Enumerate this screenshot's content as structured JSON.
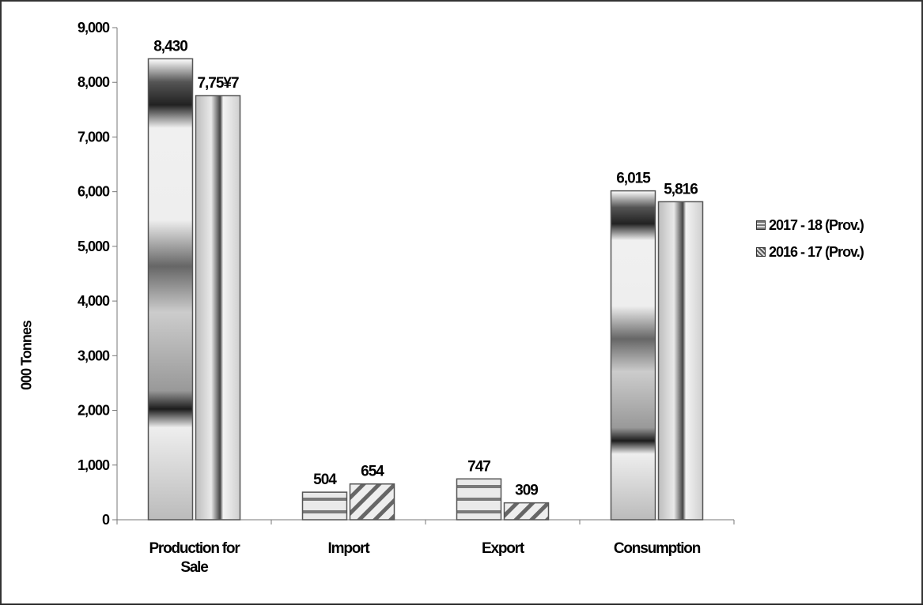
{
  "chart_data": {
    "type": "bar",
    "title": "",
    "xlabel": "",
    "ylabel": "000 Tonnes",
    "ylim": [
      0,
      9000
    ],
    "yticks": [
      "0",
      "1,000",
      "2,000",
      "3,000",
      "4,000",
      "5,000",
      "6,000",
      "7,000",
      "8,000",
      "9,000"
    ],
    "categories": [
      [
        "Production for",
        "Sale"
      ],
      [
        "Import"
      ],
      [
        "Export"
      ],
      [
        "Consumption"
      ]
    ],
    "series": [
      {
        "name": "2017 - 18 (Prov.)",
        "values": [
          8430,
          504,
          747,
          6015
        ],
        "labels": [
          "8,430",
          "504",
          "747",
          "6,015"
        ]
      },
      {
        "name": "2016 - 17 (Prov.)",
        "values": [
          7757,
          654,
          309,
          5816
        ],
        "labels": [
          "7,75¥7",
          "654",
          "309",
          "5,816"
        ]
      }
    ],
    "grid": false,
    "legend_position": "right"
  }
}
